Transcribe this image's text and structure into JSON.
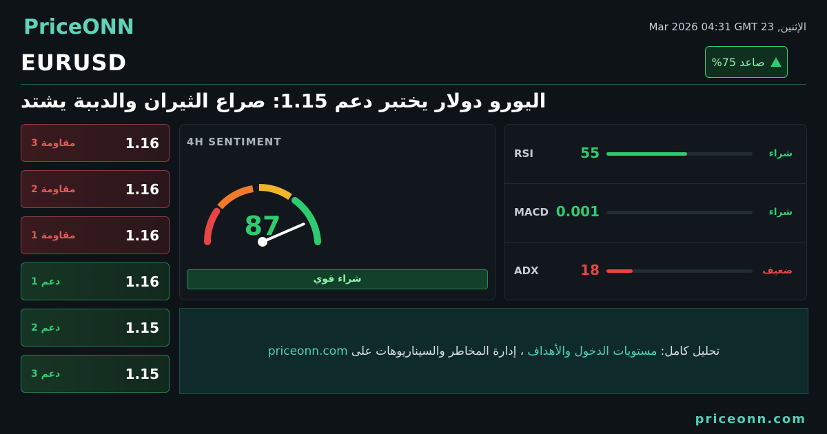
{
  "header": {
    "brand": "PriceONN",
    "timestamp": "الإثنين, 23 Mar 2026 04:31 GMT",
    "symbol": "EURUSD",
    "badge": "صاعد 75%"
  },
  "headline": "اليورو دولار يختبر دعم 1.15: صراع الثيران والدببة يشتد",
  "levels": [
    {
      "label": "مقاومة 3",
      "value": "1.16",
      "color": "#e05a5a"
    },
    {
      "label": "مقاومة 2",
      "value": "1.16",
      "color": "#e05a5a"
    },
    {
      "label": "مقاومة 1",
      "value": "1.16",
      "color": "#e05a5a"
    },
    {
      "label": "دعم 1",
      "value": "1.16",
      "color": "#2ecc71"
    },
    {
      "label": "دعم 2",
      "value": "1.15",
      "color": "#2ecc71"
    },
    {
      "label": "دعم 3",
      "value": "1.15",
      "color": "#2ecc71"
    }
  ],
  "sentiment": {
    "title": "4H SENTIMENT",
    "value": 87,
    "range": [
      0,
      100
    ],
    "label": "شراء قوي",
    "color": "#2ecc71"
  },
  "indicators": {
    "range": [
      0,
      100
    ],
    "rows": [
      {
        "name": "RSI",
        "value": 55,
        "status": "شراء",
        "color": "#2ecc71"
      },
      {
        "name": "MACD",
        "value": 0.001,
        "status": "شراء",
        "color": "#2ecc71"
      },
      {
        "name": "ADX",
        "value": 18,
        "status": "ضعيف",
        "color": "#e84545"
      }
    ]
  },
  "cta": {
    "prefix": "تحليل كامل:",
    "link": "مستويات الدخول والأهداف",
    "rest": "، إدارة المخاطر والسيناريوهات على",
    "site": "priceonn.com"
  },
  "footer": {
    "domain": "priceonn.com"
  }
}
